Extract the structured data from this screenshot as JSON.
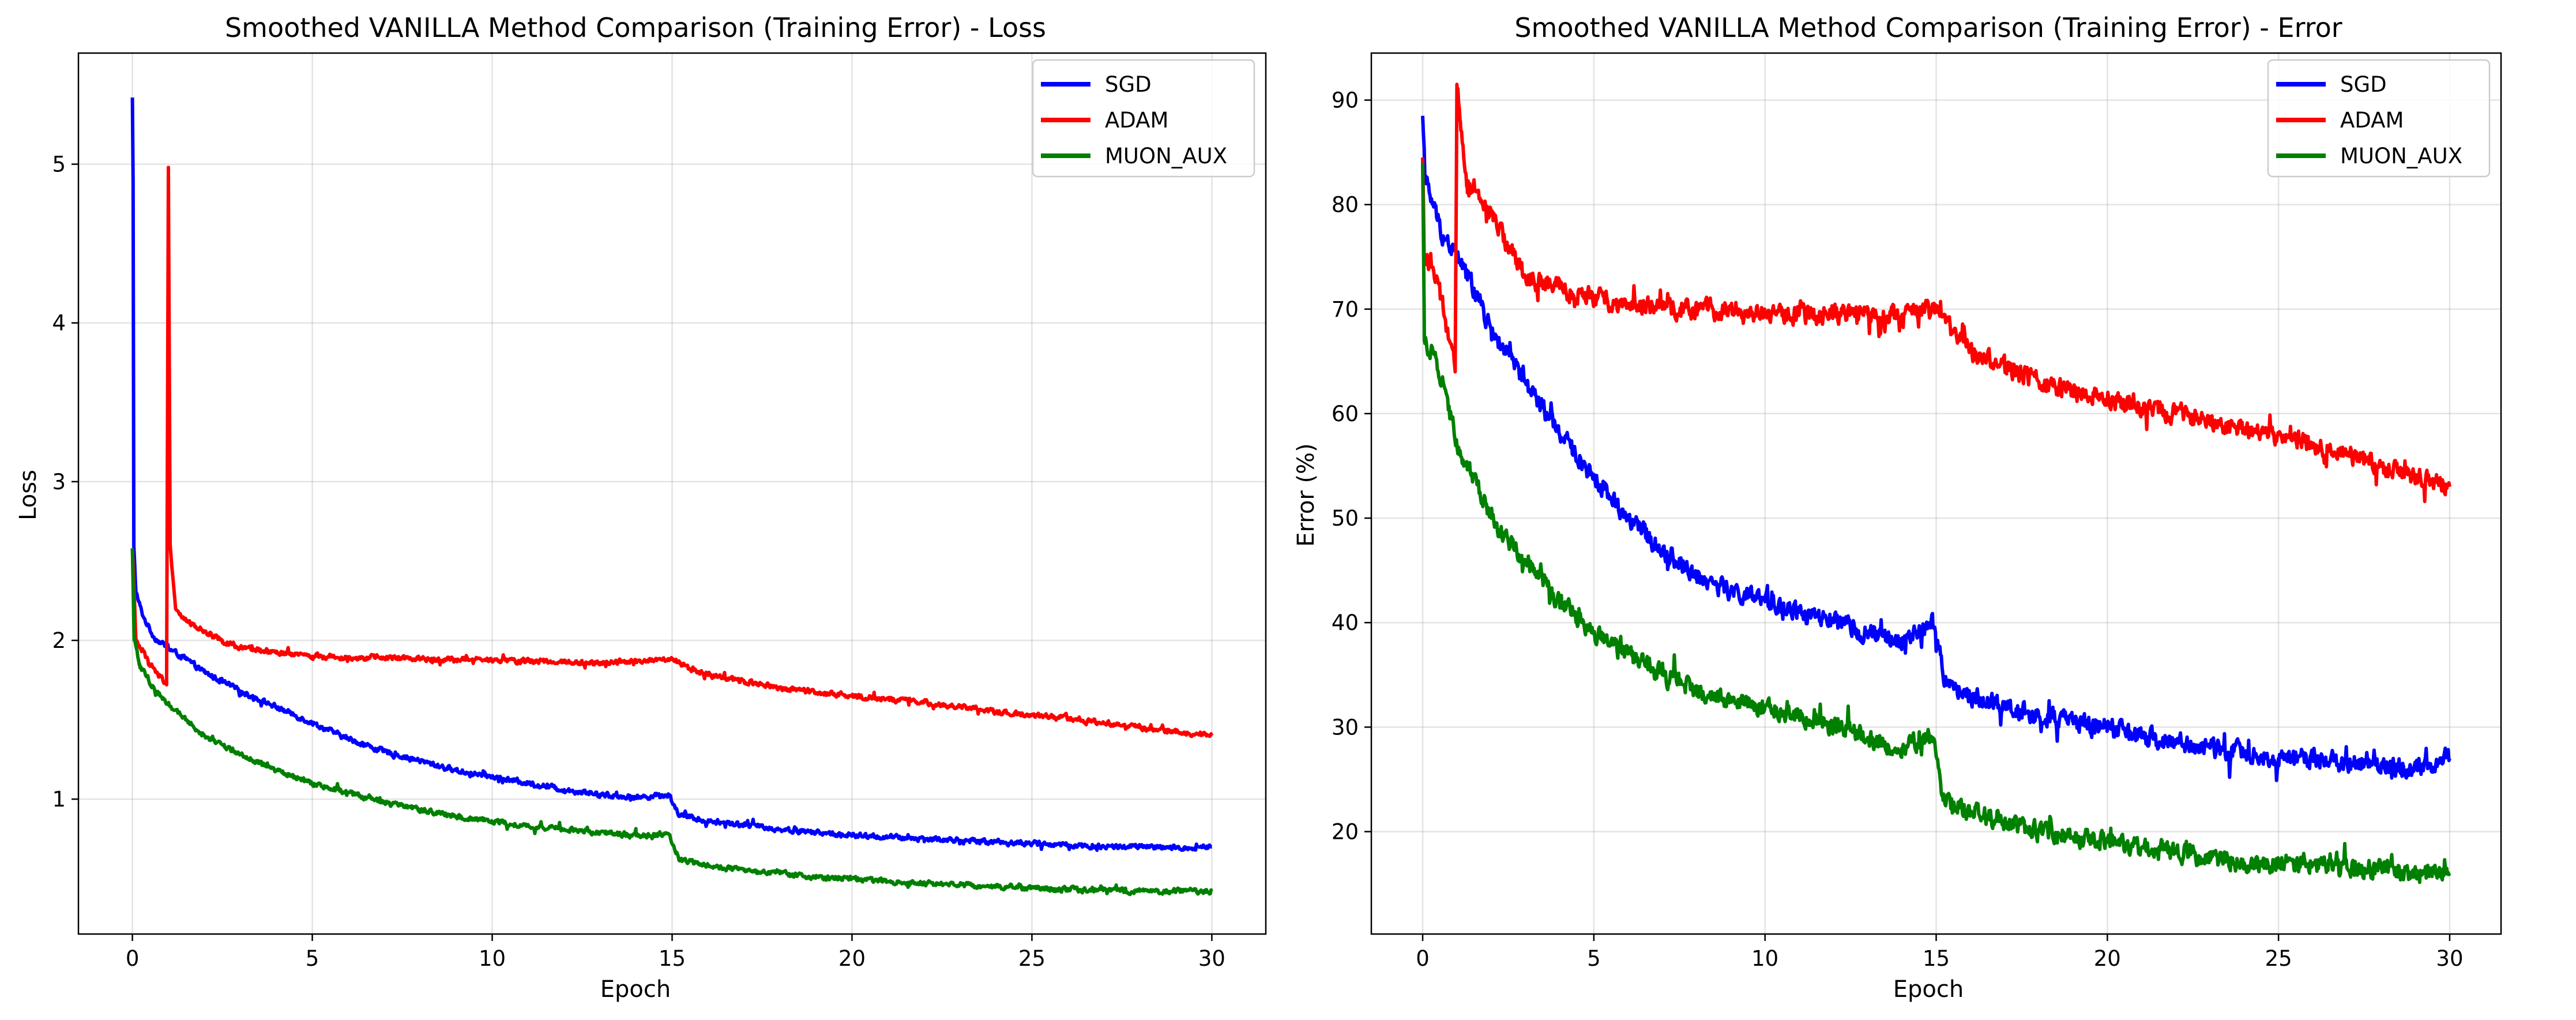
{
  "chart_data": [
    {
      "type": "line",
      "title": "Smoothed VANILLA Method Comparison (Training Error) - Loss",
      "xlabel": "Epoch",
      "ylabel": "Loss",
      "xlim": [
        -1.5,
        31.5
      ],
      "ylim": [
        0.15,
        5.7
      ],
      "xticks": [
        0,
        5,
        10,
        15,
        20,
        25,
        30
      ],
      "yticks": [
        1,
        2,
        3,
        4,
        5
      ],
      "grid": true,
      "legend_position": "top-right",
      "series": [
        {
          "name": "SGD",
          "color": "#0000ff",
          "points": [
            [
              0,
              5.42
            ],
            [
              0.02,
              4.9
            ],
            [
              0.04,
              2.6
            ],
            [
              0.1,
              2.3
            ],
            [
              0.3,
              2.15
            ],
            [
              0.6,
              2.02
            ],
            [
              1,
              1.95
            ],
            [
              1.5,
              1.88
            ],
            [
              2,
              1.8
            ],
            [
              3,
              1.68
            ],
            [
              4,
              1.58
            ],
            [
              5,
              1.48
            ],
            [
              6,
              1.38
            ],
            [
              7,
              1.3
            ],
            [
              8,
              1.24
            ],
            [
              9,
              1.18
            ],
            [
              10,
              1.14
            ],
            [
              11,
              1.1
            ],
            [
              12,
              1.06
            ],
            [
              13,
              1.03
            ],
            [
              14,
              1.01
            ],
            [
              14.9,
              1.03
            ],
            [
              15.2,
              0.9
            ],
            [
              16,
              0.86
            ],
            [
              17,
              0.84
            ],
            [
              18,
              0.81
            ],
            [
              19,
              0.79
            ],
            [
              20,
              0.77
            ],
            [
              21,
              0.76
            ],
            [
              22,
              0.75
            ],
            [
              23,
              0.74
            ],
            [
              24,
              0.73
            ],
            [
              25,
              0.72
            ],
            [
              26,
              0.71
            ],
            [
              27,
              0.7
            ],
            [
              28,
              0.7
            ],
            [
              29,
              0.69
            ],
            [
              30,
              0.7
            ]
          ],
          "noise": 0.025
        },
        {
          "name": "ADAM",
          "color": "#ff0000",
          "points": [
            [
              0,
              2.58
            ],
            [
              0.1,
              2.0
            ],
            [
              0.5,
              1.85
            ],
            [
              0.95,
              1.72
            ],
            [
              1.0,
              4.98
            ],
            [
              1.05,
              2.6
            ],
            [
              1.2,
              2.2
            ],
            [
              1.5,
              2.12
            ],
            [
              2,
              2.06
            ],
            [
              2.5,
              2.0
            ],
            [
              3,
              1.95
            ],
            [
              4,
              1.92
            ],
            [
              5,
              1.9
            ],
            [
              7,
              1.89
            ],
            [
              9,
              1.88
            ],
            [
              11,
              1.87
            ],
            [
              13,
              1.86
            ],
            [
              14.5,
              1.87
            ],
            [
              15,
              1.88
            ],
            [
              15.5,
              1.82
            ],
            [
              16,
              1.78
            ],
            [
              17,
              1.74
            ],
            [
              18,
              1.7
            ],
            [
              19,
              1.67
            ],
            [
              20,
              1.65
            ],
            [
              21,
              1.63
            ],
            [
              22,
              1.61
            ],
            [
              23,
              1.58
            ],
            [
              24,
              1.55
            ],
            [
              25,
              1.53
            ],
            [
              26,
              1.51
            ],
            [
              27,
              1.48
            ],
            [
              28,
              1.45
            ],
            [
              29,
              1.42
            ],
            [
              30,
              1.4
            ]
          ],
          "noise": 0.025
        },
        {
          "name": "MUON_AUX",
          "color": "#008000",
          "points": [
            [
              0,
              2.58
            ],
            [
              0.05,
              2.0
            ],
            [
              0.2,
              1.85
            ],
            [
              0.5,
              1.72
            ],
            [
              1,
              1.6
            ],
            [
              1.5,
              1.5
            ],
            [
              2,
              1.4
            ],
            [
              3,
              1.28
            ],
            [
              4,
              1.18
            ],
            [
              5,
              1.1
            ],
            [
              6,
              1.04
            ],
            [
              7,
              0.98
            ],
            [
              8,
              0.93
            ],
            [
              9,
              0.89
            ],
            [
              10,
              0.86
            ],
            [
              11,
              0.83
            ],
            [
              12,
              0.81
            ],
            [
              13,
              0.79
            ],
            [
              14,
              0.77
            ],
            [
              14.9,
              0.78
            ],
            [
              15.2,
              0.62
            ],
            [
              16,
              0.58
            ],
            [
              17,
              0.55
            ],
            [
              18,
              0.53
            ],
            [
              19,
              0.51
            ],
            [
              20,
              0.5
            ],
            [
              21,
              0.48
            ],
            [
              22,
              0.47
            ],
            [
              23,
              0.46
            ],
            [
              24,
              0.45
            ],
            [
              25,
              0.44
            ],
            [
              26,
              0.43
            ],
            [
              27,
              0.43
            ],
            [
              28,
              0.42
            ],
            [
              29,
              0.42
            ],
            [
              30,
              0.42
            ]
          ],
          "noise": 0.025
        }
      ]
    },
    {
      "type": "line",
      "title": "Smoothed VANILLA Method Comparison (Training Error) - Error",
      "xlabel": "Epoch",
      "ylabel": "Error (%)",
      "xlim": [
        -1.5,
        31.5
      ],
      "ylim": [
        10.2,
        94.5
      ],
      "xticks": [
        0,
        5,
        10,
        15,
        20,
        25,
        30
      ],
      "yticks": [
        20,
        30,
        40,
        50,
        60,
        70,
        80,
        90
      ],
      "grid": true,
      "legend_position": "top-right",
      "series": [
        {
          "name": "SGD",
          "color": "#0000ff",
          "points": [
            [
              0,
              88.5
            ],
            [
              0.1,
              82
            ],
            [
              0.3,
              80
            ],
            [
              0.6,
              77
            ],
            [
              1,
              75
            ],
            [
              1.5,
              72
            ],
            [
              2,
              68
            ],
            [
              3,
              63
            ],
            [
              4,
              58
            ],
            [
              5,
              54
            ],
            [
              6,
              50
            ],
            [
              7,
              47
            ],
            [
              8,
              44.5
            ],
            [
              9,
              43
            ],
            [
              10,
              42
            ],
            [
              11,
              41
            ],
            [
              12,
              40
            ],
            [
              13,
              39
            ],
            [
              14,
              38
            ],
            [
              14.9,
              40
            ],
            [
              15.3,
              34
            ],
            [
              16,
              33
            ],
            [
              17,
              32
            ],
            [
              18,
              31
            ],
            [
              19,
              30.5
            ],
            [
              20,
              30
            ],
            [
              21,
              29
            ],
            [
              22,
              28.5
            ],
            [
              23,
              28
            ],
            [
              24,
              27.5
            ],
            [
              25,
              27
            ],
            [
              26,
              27
            ],
            [
              27,
              26.5
            ],
            [
              28,
              26.5
            ],
            [
              29,
              26
            ],
            [
              30,
              27
            ]
          ],
          "noise": 1.4
        },
        {
          "name": "ADAM",
          "color": "#ff0000",
          "points": [
            [
              0,
              84.5
            ],
            [
              0.05,
              75
            ],
            [
              0.3,
              74
            ],
            [
              0.6,
              70
            ],
            [
              0.95,
              64
            ],
            [
              1.0,
              91.5
            ],
            [
              1.1,
              88
            ],
            [
              1.3,
              82
            ],
            [
              2,
              79
            ],
            [
              2.5,
              76
            ],
            [
              3,
              73
            ],
            [
              4,
              72
            ],
            [
              5,
              71
            ],
            [
              6,
              70.5
            ],
            [
              7,
              70
            ],
            [
              8,
              70
            ],
            [
              9,
              70
            ],
            [
              10,
              69.5
            ],
            [
              11,
              69.5
            ],
            [
              12,
              69.5
            ],
            [
              13,
              69.5
            ],
            [
              14,
              69.5
            ],
            [
              15,
              70
            ],
            [
              15.5,
              68
            ],
            [
              16,
              66
            ],
            [
              17,
              64.5
            ],
            [
              18,
              63
            ],
            [
              19,
              62
            ],
            [
              20,
              61.5
            ],
            [
              21,
              60.5
            ],
            [
              22,
              60
            ],
            [
              23,
              59
            ],
            [
              24,
              58.5
            ],
            [
              25,
              58
            ],
            [
              26,
              57
            ],
            [
              27,
              56
            ],
            [
              28,
              55
            ],
            [
              29,
              54
            ],
            [
              30,
              53
            ]
          ],
          "noise": 1.4
        },
        {
          "name": "MUON_AUX",
          "color": "#008000",
          "points": [
            [
              0,
              84
            ],
            [
              0.05,
              67
            ],
            [
              0.3,
              66
            ],
            [
              0.6,
              63
            ],
            [
              1,
              57
            ],
            [
              1.5,
              54
            ],
            [
              2,
              50
            ],
            [
              3,
              46
            ],
            [
              4,
              42
            ],
            [
              5,
              39
            ],
            [
              6,
              37
            ],
            [
              7,
              35
            ],
            [
              8,
              33.5
            ],
            [
              9,
              32.5
            ],
            [
              10,
              32
            ],
            [
              11,
              31
            ],
            [
              12,
              30
            ],
            [
              13,
              29
            ],
            [
              14,
              28
            ],
            [
              14.9,
              29
            ],
            [
              15.2,
              23
            ],
            [
              16,
              22
            ],
            [
              17,
              21
            ],
            [
              18,
              20
            ],
            [
              19,
              19.5
            ],
            [
              20,
              19
            ],
            [
              21,
              18.5
            ],
            [
              22,
              18
            ],
            [
              23,
              17.5
            ],
            [
              24,
              17
            ],
            [
              25,
              17
            ],
            [
              26,
              17
            ],
            [
              27,
              16.5
            ],
            [
              28,
              16.5
            ],
            [
              29,
              16
            ],
            [
              30,
              16
            ]
          ],
          "noise": 1.4
        }
      ]
    }
  ]
}
